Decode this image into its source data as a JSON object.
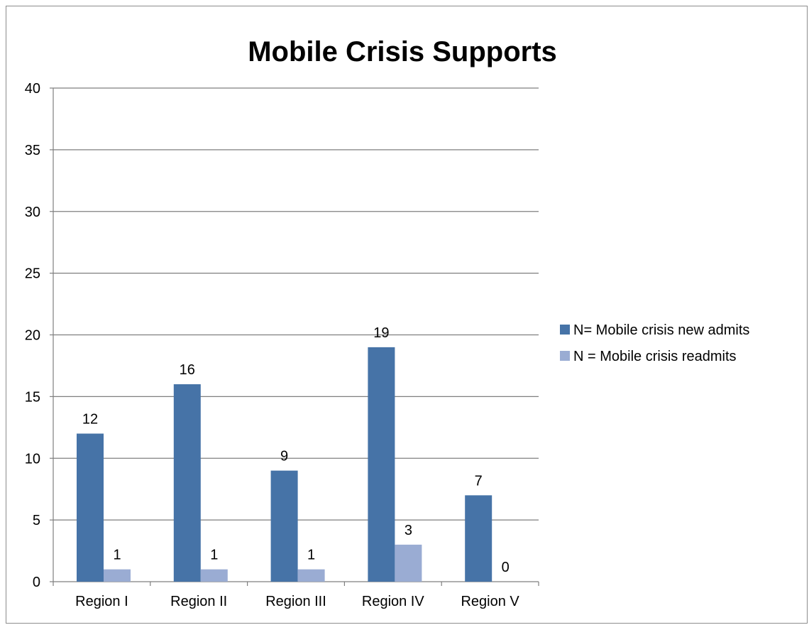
{
  "chart_data": {
    "type": "bar",
    "title": "Mobile Crisis Supports",
    "xlabel": "",
    "ylabel": "",
    "categories": [
      "Region I",
      "Region II",
      "Region III",
      "Region IV",
      "Region V"
    ],
    "series": [
      {
        "name": "N= Mobile crisis new admits",
        "color": "#4673a7",
        "values": [
          12,
          16,
          9,
          19,
          7
        ]
      },
      {
        "name": "N = Mobile crisis readmits",
        "color": "#9aacd3",
        "values": [
          1,
          1,
          1,
          3,
          0
        ]
      }
    ],
    "ylim": [
      0,
      40
    ],
    "yticks": [
      0,
      5,
      10,
      15,
      20,
      25,
      30,
      35,
      40
    ],
    "grid": true,
    "legend_position": "right",
    "data_labels": true
  }
}
